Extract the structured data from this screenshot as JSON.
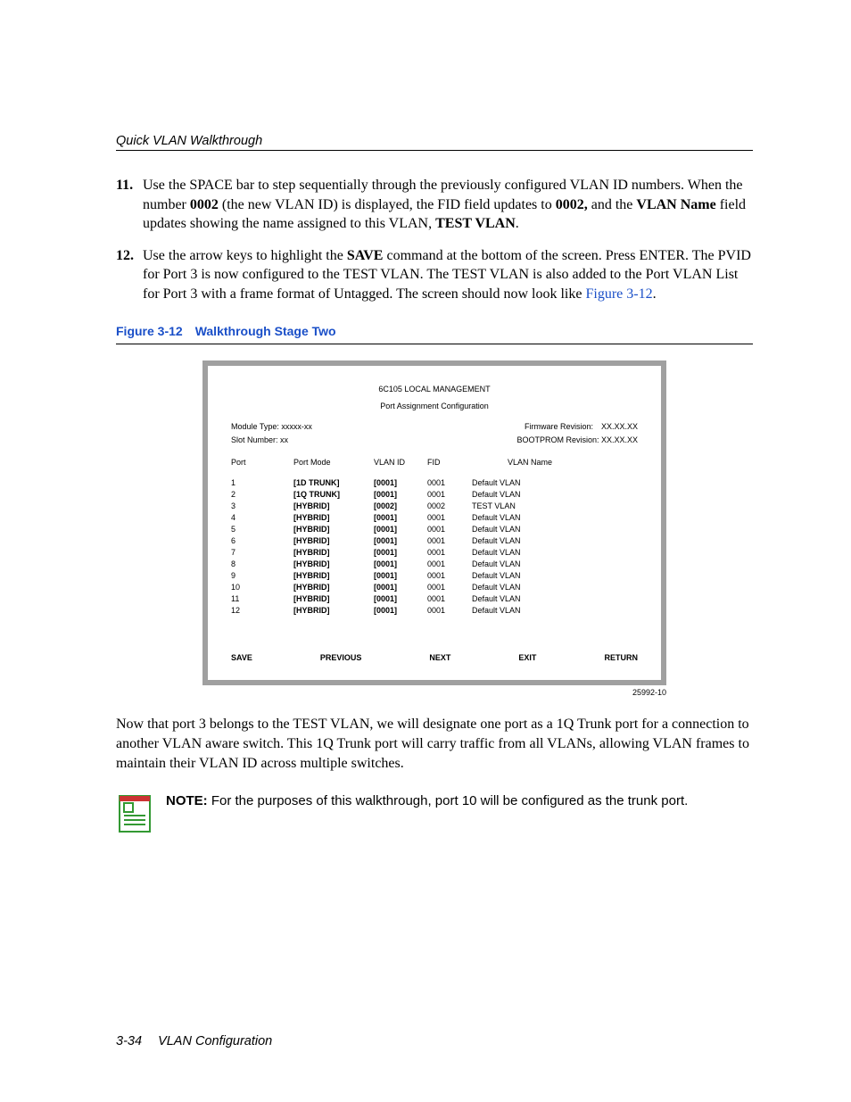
{
  "header": {
    "running_title": "Quick VLAN Walkthrough"
  },
  "steps": [
    {
      "number": "11.",
      "parts": [
        {
          "t": "plain",
          "v": "Use the SPACE bar to step sequentially through the previously configured VLAN ID numbers. When the number "
        },
        {
          "t": "bold",
          "v": "0002"
        },
        {
          "t": "plain",
          "v": " (the new VLAN ID) is displayed, the FID field updates to "
        },
        {
          "t": "bold",
          "v": "0002,"
        },
        {
          "t": "plain",
          "v": " and the "
        },
        {
          "t": "bold",
          "v": "VLAN Name"
        },
        {
          "t": "plain",
          "v": " field updates showing the name assigned to this VLAN, "
        },
        {
          "t": "bold",
          "v": "TEST VLAN"
        },
        {
          "t": "plain",
          "v": "."
        }
      ]
    },
    {
      "number": "12.",
      "parts": [
        {
          "t": "plain",
          "v": "Use the arrow keys to highlight the "
        },
        {
          "t": "bold",
          "v": "SAVE"
        },
        {
          "t": "plain",
          "v": " command at the bottom of the screen. Press ENTER. The PVID for Port 3 is now configured to the TEST VLAN. The TEST VLAN is also added to the Port VLAN List for Port 3 with a frame format of Untagged. The screen should now look like "
        },
        {
          "t": "link",
          "v": "Figure 3-12"
        },
        {
          "t": "plain",
          "v": "."
        }
      ]
    }
  ],
  "figure": {
    "caption_num": "Figure 3-12",
    "caption_gap": " ",
    "caption_title": "Walkthrough Stage Two",
    "id_label": "25992-10",
    "terminal": {
      "title": "6C105  LOCAL MANAGEMENT",
      "subtitle": "Port Assignment Configuration",
      "meta_left_1": "Module Type: xxxxx-xx",
      "meta_left_2": "Slot Number: xx",
      "meta_right_1": "Firmware Revision: XX.XX.XX",
      "meta_right_2": "BOOTPROM Revision: XX.XX.XX",
      "headers": {
        "port": "Port",
        "mode": "Port Mode",
        "vlanid": "VLAN ID",
        "fid": "FID",
        "name": "VLAN Name"
      },
      "rows": [
        {
          "port": "1",
          "mode": "[1D TRUNK]",
          "vlanid": "[0001]",
          "fid": "0001",
          "name": "Default  VLAN"
        },
        {
          "port": "2",
          "mode": "[1Q TRUNK]",
          "vlanid": "[0001]",
          "fid": "0001",
          "name": "Default  VLAN"
        },
        {
          "port": "3",
          "mode": "[HYBRID]",
          "vlanid": "[0002]",
          "fid": "0002",
          "name": "TEST VLAN"
        },
        {
          "port": "4",
          "mode": "[HYBRID]",
          "vlanid": "[0001]",
          "fid": "0001",
          "name": "Default  VLAN"
        },
        {
          "port": "5",
          "mode": "[HYBRID]",
          "vlanid": "[0001]",
          "fid": "0001",
          "name": "Default  VLAN"
        },
        {
          "port": "6",
          "mode": "[HYBRID]",
          "vlanid": "[0001]",
          "fid": "0001",
          "name": "Default  VLAN"
        },
        {
          "port": "7",
          "mode": "[HYBRID]",
          "vlanid": "[0001]",
          "fid": "0001",
          "name": "Default  VLAN"
        },
        {
          "port": "8",
          "mode": "[HYBRID]",
          "vlanid": "[0001]",
          "fid": "0001",
          "name": "Default  VLAN"
        },
        {
          "port": "9",
          "mode": "[HYBRID]",
          "vlanid": "[0001]",
          "fid": "0001",
          "name": "Default  VLAN"
        },
        {
          "port": "10",
          "mode": "[HYBRID]",
          "vlanid": "[0001]",
          "fid": "0001",
          "name": "Default  VLAN"
        },
        {
          "port": "11",
          "mode": "[HYBRID]",
          "vlanid": "[0001]",
          "fid": "0001",
          "name": "Default  VLAN"
        },
        {
          "port": "12",
          "mode": "[HYBRID]",
          "vlanid": "[0001]",
          "fid": "0001",
          "name": "Default  VLAN"
        }
      ],
      "commands": {
        "save": "SAVE",
        "previous": "PREVIOUS",
        "next": "NEXT",
        "exit": "EXIT",
        "return": "RETURN"
      }
    }
  },
  "para_after": "Now that port 3 belongs to the TEST VLAN, we will designate one port as a 1Q Trunk port for a connection to another VLAN aware switch. This 1Q Trunk port will carry traffic from all VLANs, allowing VLAN frames to maintain their VLAN ID across multiple switches.",
  "note": {
    "label": "NOTE:",
    "text": "  For the purposes of this walkthrough, port 10 will be configured as the trunk port."
  },
  "footer": {
    "page": "3-34",
    "section": "VLAN Configuration"
  },
  "colors": {
    "link": "#1a4fc8",
    "term_border": "#a0a0a0",
    "icon_green": "#339933",
    "icon_red": "#cc3333"
  }
}
